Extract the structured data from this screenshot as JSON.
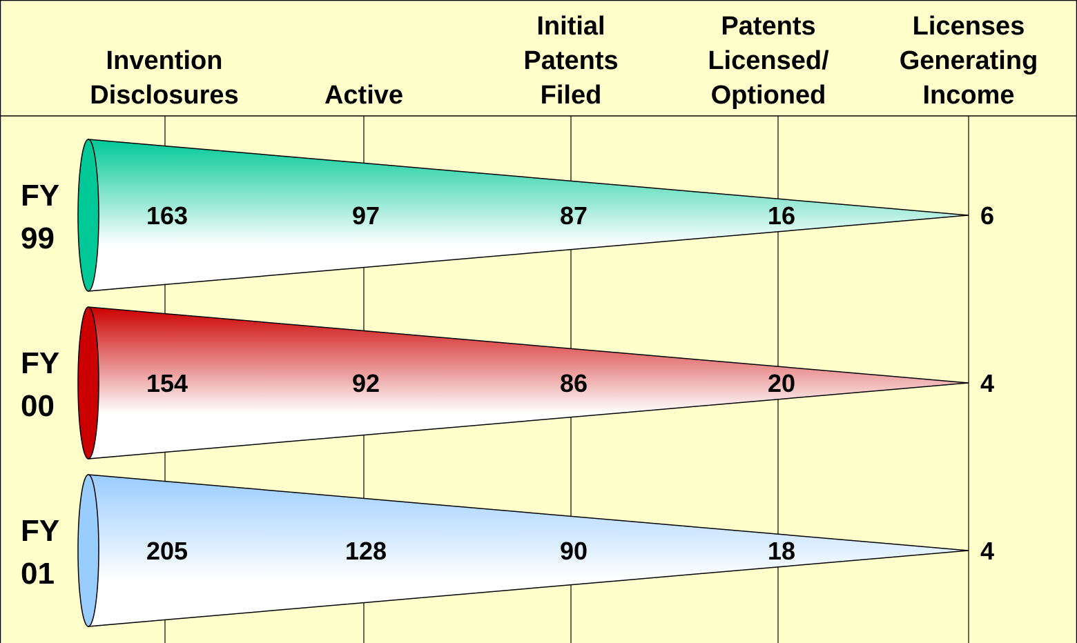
{
  "chart_data": {
    "type": "funnel",
    "title": "",
    "stages": [
      [
        "Invention",
        "Disclosures"
      ],
      [
        "Active"
      ],
      [
        "Initial",
        "Patents",
        "Filed"
      ],
      [
        "Patents",
        "Licensed/",
        "Optioned"
      ],
      [
        "Licenses",
        "Generating",
        "Income"
      ]
    ],
    "series": [
      {
        "name": "FY 99",
        "label_lines": [
          "FY",
          "99"
        ],
        "values": [
          163,
          97,
          87,
          16,
          6
        ],
        "color": "#00C896"
      },
      {
        "name": "FY 00",
        "label_lines": [
          "FY",
          "00"
        ],
        "values": [
          154,
          92,
          86,
          20,
          4
        ],
        "color": "#CC0000"
      },
      {
        "name": "FY 01",
        "label_lines": [
          "FY",
          "01"
        ],
        "values": [
          205,
          128,
          90,
          18,
          4
        ],
        "color": "#99CCFF"
      }
    ],
    "colors": {
      "background": "#FFFFCC",
      "lines": "#000000"
    }
  }
}
